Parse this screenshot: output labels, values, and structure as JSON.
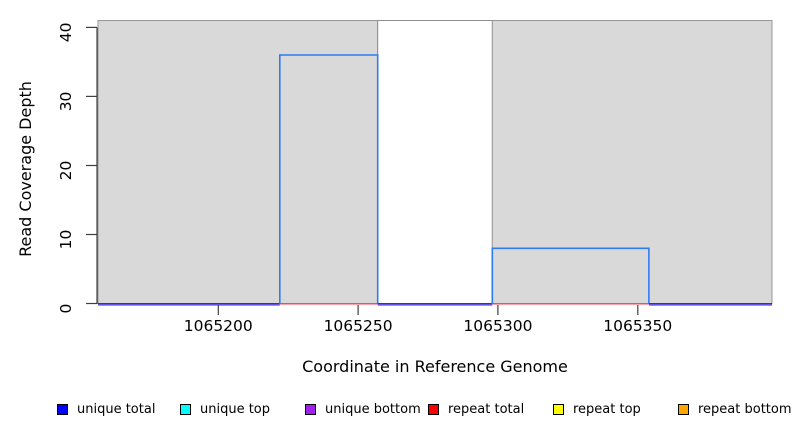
{
  "chart_data": {
    "type": "line",
    "subtype": "step-coverage-depth",
    "title": "",
    "xlabel": "Coordinate in Reference Genome",
    "ylabel": "Read Coverage Depth",
    "xlim": [
      1065157,
      1065398
    ],
    "ylim": [
      0,
      41
    ],
    "x_ticks": [
      1065200,
      1065250,
      1065300,
      1065350
    ],
    "y_ticks": [
      0,
      10,
      20,
      30,
      40
    ],
    "grid": false,
    "legend_position": "bottom",
    "regions": [
      {
        "name": "unique-region-left",
        "x0": 1065157,
        "x1": 1065257,
        "y0": 0,
        "y1": 41,
        "fill": "#d9d9d9",
        "stroke": "#979797"
      },
      {
        "name": "repeat-region",
        "x0": 1065257,
        "x1": 1065298,
        "y0": 0,
        "y1": 41,
        "fill": "#ffffff",
        "stroke": "#8e8e8e"
      },
      {
        "name": "unique-region-right",
        "x0": 1065298,
        "x1": 1065398,
        "y0": 0,
        "y1": 41,
        "fill": "#d9d9d9",
        "stroke": "#979797"
      }
    ],
    "series": [
      {
        "name": "unique total",
        "legend_color": "#0000ff",
        "elevated_color": "#2e7bf6",
        "baseline_color": "#2d2dd9",
        "steps": [
          {
            "x0": 1065157,
            "x1": 1065222,
            "y": 0
          },
          {
            "x0": 1065222,
            "x1": 1065257,
            "y": 36
          },
          {
            "x0": 1065257,
            "x1": 1065298,
            "y": 0
          },
          {
            "x0": 1065298,
            "x1": 1065354,
            "y": 8
          },
          {
            "x0": 1065354,
            "x1": 1065398,
            "y": 0
          }
        ]
      },
      {
        "name": "unique top",
        "legend_color": "#00ffff",
        "value": 0,
        "visible_segments": []
      },
      {
        "name": "unique bottom",
        "legend_color": "#a020f0",
        "line_color": "#977ae8",
        "value": 0,
        "visible_segments": [
          [
            1065157,
            1065222
          ],
          [
            1065257,
            1065298
          ],
          [
            1065354,
            1065398
          ]
        ]
      },
      {
        "name": "repeat total",
        "legend_color": "#ff0000",
        "line_color": "#f2455c",
        "value": 0,
        "visible_segments": [
          [
            1065222,
            1065257
          ],
          [
            1065298,
            1065354
          ]
        ]
      },
      {
        "name": "repeat top",
        "legend_color": "#ffff00",
        "value": 0,
        "visible_segments": []
      },
      {
        "name": "repeat bottom",
        "legend_color": "#ffa500",
        "value": 0,
        "visible_segments": []
      }
    ],
    "legend": [
      {
        "label": "unique total",
        "color": "#0000ff"
      },
      {
        "label": "unique top",
        "color": "#00ffff"
      },
      {
        "label": "unique bottom",
        "color": "#a020f0"
      },
      {
        "label": "repeat total",
        "color": "#ff0000"
      },
      {
        "label": "repeat top",
        "color": "#ffff00"
      },
      {
        "label": "repeat bottom",
        "color": "#ffa500"
      }
    ],
    "axis_color": "#3f3f3f",
    "text_color": "#000000"
  }
}
